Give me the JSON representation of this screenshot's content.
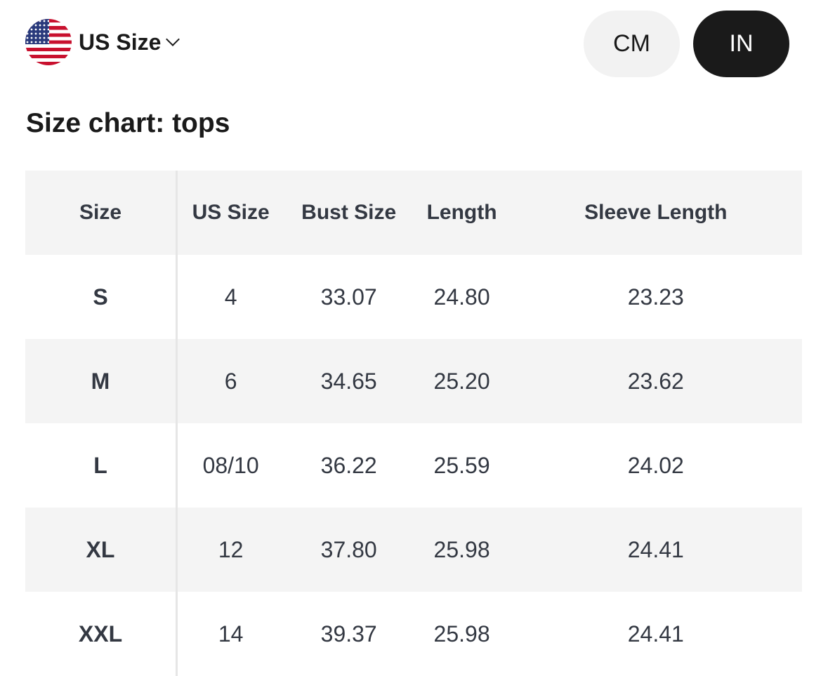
{
  "region": {
    "label": "US Size",
    "flag_icon": "us-flag-icon"
  },
  "units": {
    "options": [
      "CM",
      "IN"
    ],
    "selected": "IN"
  },
  "colors": {
    "selected_bg": "#1a1a1a",
    "unselected_bg": "#f2f2f2",
    "row_shade": "#f4f4f4",
    "text": "#333842"
  },
  "title": "Size chart: tops",
  "table": {
    "headers": [
      "Size",
      "US Size",
      "Bust Size",
      "Length",
      "Sleeve Length"
    ],
    "rows": [
      [
        "S",
        "4",
        "33.07",
        "24.80",
        "23.23"
      ],
      [
        "M",
        "6",
        "34.65",
        "25.20",
        "23.62"
      ],
      [
        "L",
        "08/10",
        "36.22",
        "25.59",
        "24.02"
      ],
      [
        "XL",
        "12",
        "37.80",
        "25.98",
        "24.41"
      ],
      [
        "XXL",
        "14",
        "39.37",
        "25.98",
        "24.41"
      ]
    ]
  }
}
